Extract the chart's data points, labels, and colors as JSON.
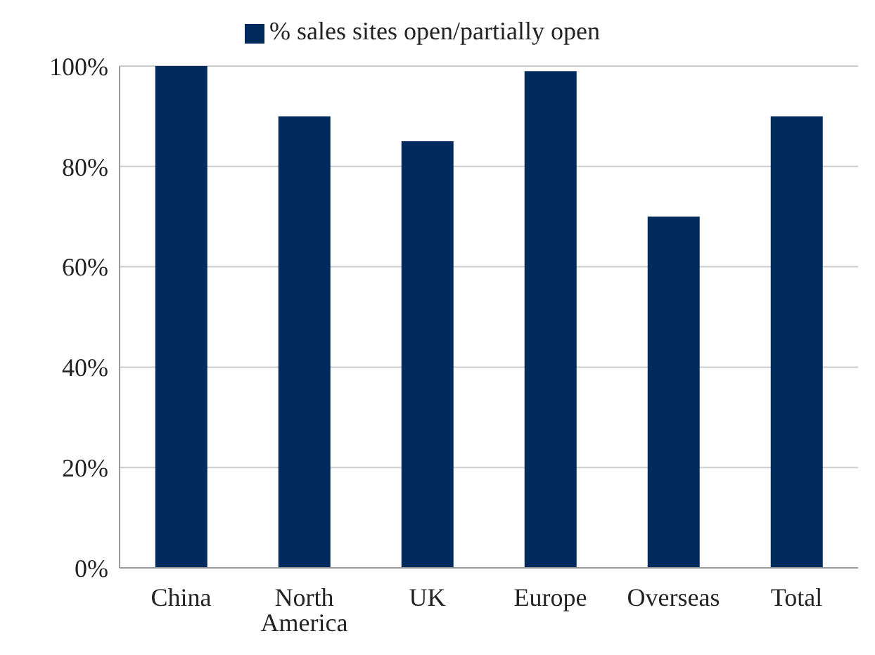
{
  "chart_data": {
    "type": "bar",
    "categories": [
      "China",
      "North America",
      "UK",
      "Europe",
      "Overseas",
      "Total"
    ],
    "series": [
      {
        "name": "% sales sites open/partially open",
        "color": "#002b5c",
        "values": [
          100,
          90,
          85,
          99,
          70,
          90
        ]
      }
    ],
    "ylim": [
      0,
      100
    ],
    "yticks": [
      {
        "value": 0,
        "label": "0%"
      },
      {
        "value": 20,
        "label": "20%"
      },
      {
        "value": 40,
        "label": "40%"
      },
      {
        "value": 60,
        "label": "60%"
      },
      {
        "value": 80,
        "label": "80%"
      },
      {
        "value": 100,
        "label": "100%"
      }
    ],
    "grid": "y",
    "legend": "top"
  }
}
